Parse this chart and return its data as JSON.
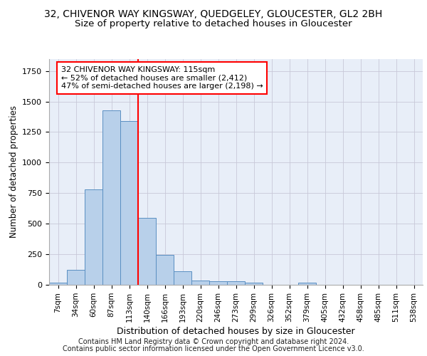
{
  "title_line1": "32, CHIVENOR WAY KINGSWAY, QUEDGELEY, GLOUCESTER, GL2 2BH",
  "title_line2": "Size of property relative to detached houses in Gloucester",
  "xlabel": "Distribution of detached houses by size in Gloucester",
  "ylabel": "Number of detached properties",
  "bar_labels": [
    "7sqm",
    "34sqm",
    "60sqm",
    "87sqm",
    "113sqm",
    "140sqm",
    "166sqm",
    "193sqm",
    "220sqm",
    "246sqm",
    "273sqm",
    "299sqm",
    "326sqm",
    "352sqm",
    "379sqm",
    "405sqm",
    "432sqm",
    "458sqm",
    "485sqm",
    "511sqm",
    "538sqm"
  ],
  "bar_values": [
    15,
    125,
    780,
    1430,
    1340,
    550,
    245,
    110,
    35,
    30,
    30,
    15,
    0,
    0,
    20,
    0,
    0,
    0,
    0,
    0,
    0
  ],
  "bar_color": "#b8d0ea",
  "bar_edge_color": "#5a8fc2",
  "vline_index": 4,
  "vline_color": "red",
  "annotation_text": "32 CHIVENOR WAY KINGSWAY: 115sqm\n← 52% of detached houses are smaller (2,412)\n47% of semi-detached houses are larger (2,198) →",
  "annotation_box_facecolor": "white",
  "annotation_box_edge_color": "red",
  "footer_line1": "Contains HM Land Registry data © Crown copyright and database right 2024.",
  "footer_line2": "Contains public sector information licensed under the Open Government Licence v3.0.",
  "ylim_max": 1850,
  "bg_color": "#e8eef8",
  "grid_color": "#c8c8d8"
}
